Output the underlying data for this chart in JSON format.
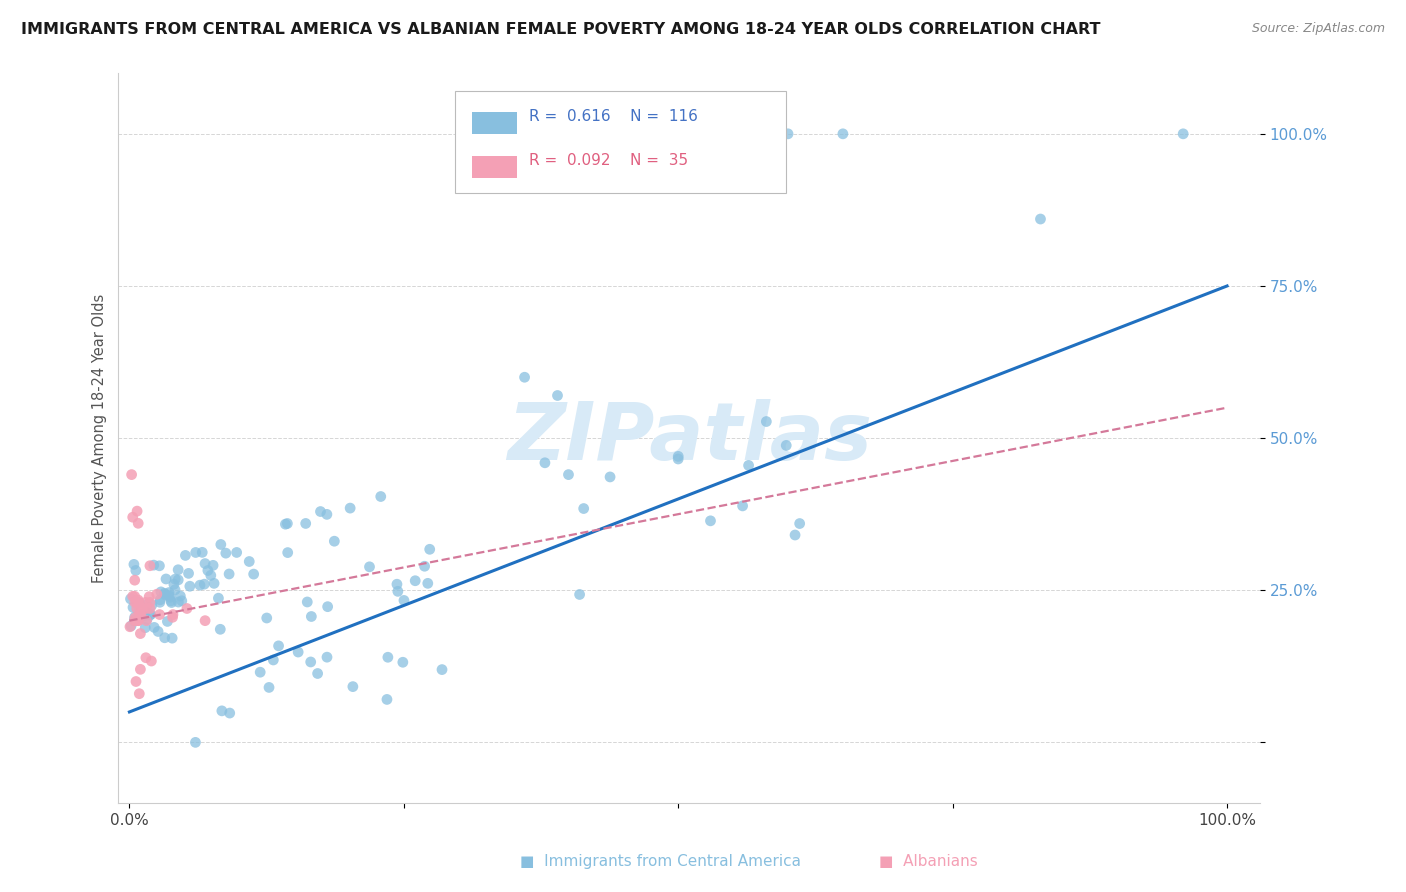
{
  "title": "IMMIGRANTS FROM CENTRAL AMERICA VS ALBANIAN FEMALE POVERTY AMONG 18-24 YEAR OLDS CORRELATION CHART",
  "source": "Source: ZipAtlas.com",
  "ylabel": "Female Poverty Among 18-24 Year Olds",
  "blue_R": 0.616,
  "blue_N": 116,
  "pink_R": 0.092,
  "pink_N": 35,
  "blue_color": "#88bfdf",
  "pink_color": "#f4a0b5",
  "trendline_blue": "#2070c0",
  "trendline_pink": "#d4799a",
  "watermark_color": "#d8eaf7",
  "background_color": "#ffffff",
  "grid_color": "#cccccc",
  "ytick_color": "#5b9bd5",
  "blue_intercept": 0.05,
  "blue_slope": 0.7,
  "pink_intercept": 0.2,
  "pink_slope": 0.35
}
